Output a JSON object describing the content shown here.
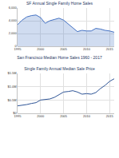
{
  "caption": "San Francisco Median Home Sales 1960 - 2017",
  "chart_data": [
    {
      "type": "area",
      "title": "SF Annual Single Family Home Sales",
      "x": [
        1995,
        1996,
        1997,
        1998,
        1999,
        2000,
        2001,
        2002,
        2003,
        2004,
        2005,
        2006,
        2007,
        2008,
        2009,
        2010,
        2011,
        2012,
        2013,
        2014,
        2015,
        2016
      ],
      "values": [
        3400,
        4100,
        4600,
        4800,
        4900,
        4500,
        3600,
        4000,
        4200,
        4400,
        4100,
        3500,
        3000,
        2300,
        2500,
        2400,
        2400,
        2800,
        2700,
        2500,
        2400,
        2200
      ],
      "color": "#4472c4",
      "xlim": [
        1995,
        2016
      ],
      "xticks": [
        1995,
        2000,
        2005,
        2010,
        2015
      ],
      "ylim": [
        0,
        6000
      ],
      "yticks": [
        0,
        {
          "value": 2000,
          "label": "2,000"
        },
        {
          "value": 4000,
          "label": "4,000"
        },
        {
          "value": 6000,
          "label": "6,000"
        }
      ],
      "grid": true
    },
    {
      "type": "line",
      "title": "Single Family Annual Median Sale Price",
      "x": [
        1995,
        1996,
        1997,
        1998,
        1999,
        2000,
        2001,
        2002,
        2003,
        2004,
        2005,
        2006,
        2007,
        2008,
        2009,
        2010,
        2011,
        2012,
        2013,
        2014,
        2015,
        2016
      ],
      "values": [
        280000,
        300000,
        330000,
        370000,
        400000,
        500000,
        520000,
        540000,
        600000,
        690000,
        800000,
        820000,
        850000,
        800000,
        720000,
        740000,
        720000,
        780000,
        930000,
        1050000,
        1200000,
        1300000
      ],
      "color": "#2f5597",
      "xlim": [
        1995,
        2016
      ],
      "xticks": [
        1995,
        2000,
        2005,
        2010,
        2015
      ],
      "ylim": [
        0,
        1500000
      ],
      "yticks": [
        {
          "value": 0,
          "label": "$0"
        },
        {
          "value": 500000,
          "label": "$0.5M"
        },
        {
          "value": 1000000,
          "label": "$1.0M"
        },
        {
          "value": 1500000,
          "label": "$1.5M"
        }
      ],
      "grid": true
    }
  ]
}
